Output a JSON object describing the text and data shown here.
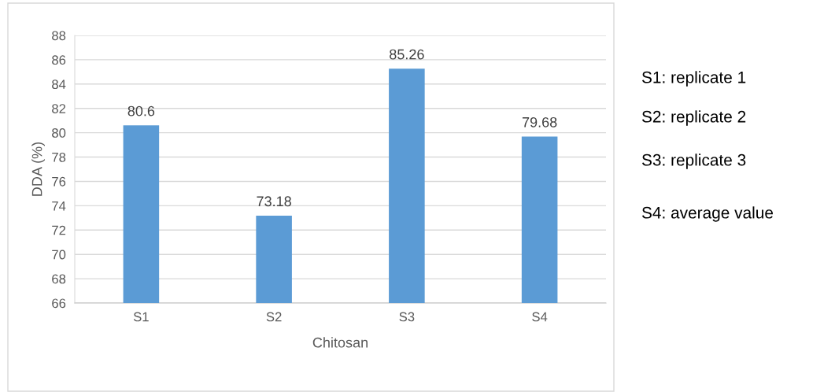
{
  "chart_data": {
    "type": "bar",
    "xlabel": "Chitosan",
    "ylabel": "DDA (%)",
    "categories": [
      "S1",
      "S2",
      "S3",
      "S4"
    ],
    "values": [
      80.6,
      73.18,
      85.26,
      79.68
    ],
    "color": "#5b9bd5",
    "ylim": [
      66,
      88
    ],
    "yticks": [
      66,
      68,
      70,
      72,
      74,
      76,
      78,
      80,
      82,
      84,
      86,
      88
    ],
    "grid": "y",
    "data_labels": true,
    "annotations": [
      "S1: replicate 1",
      "S2: replicate 2",
      "S3: replicate 3",
      "S4: average value"
    ]
  }
}
